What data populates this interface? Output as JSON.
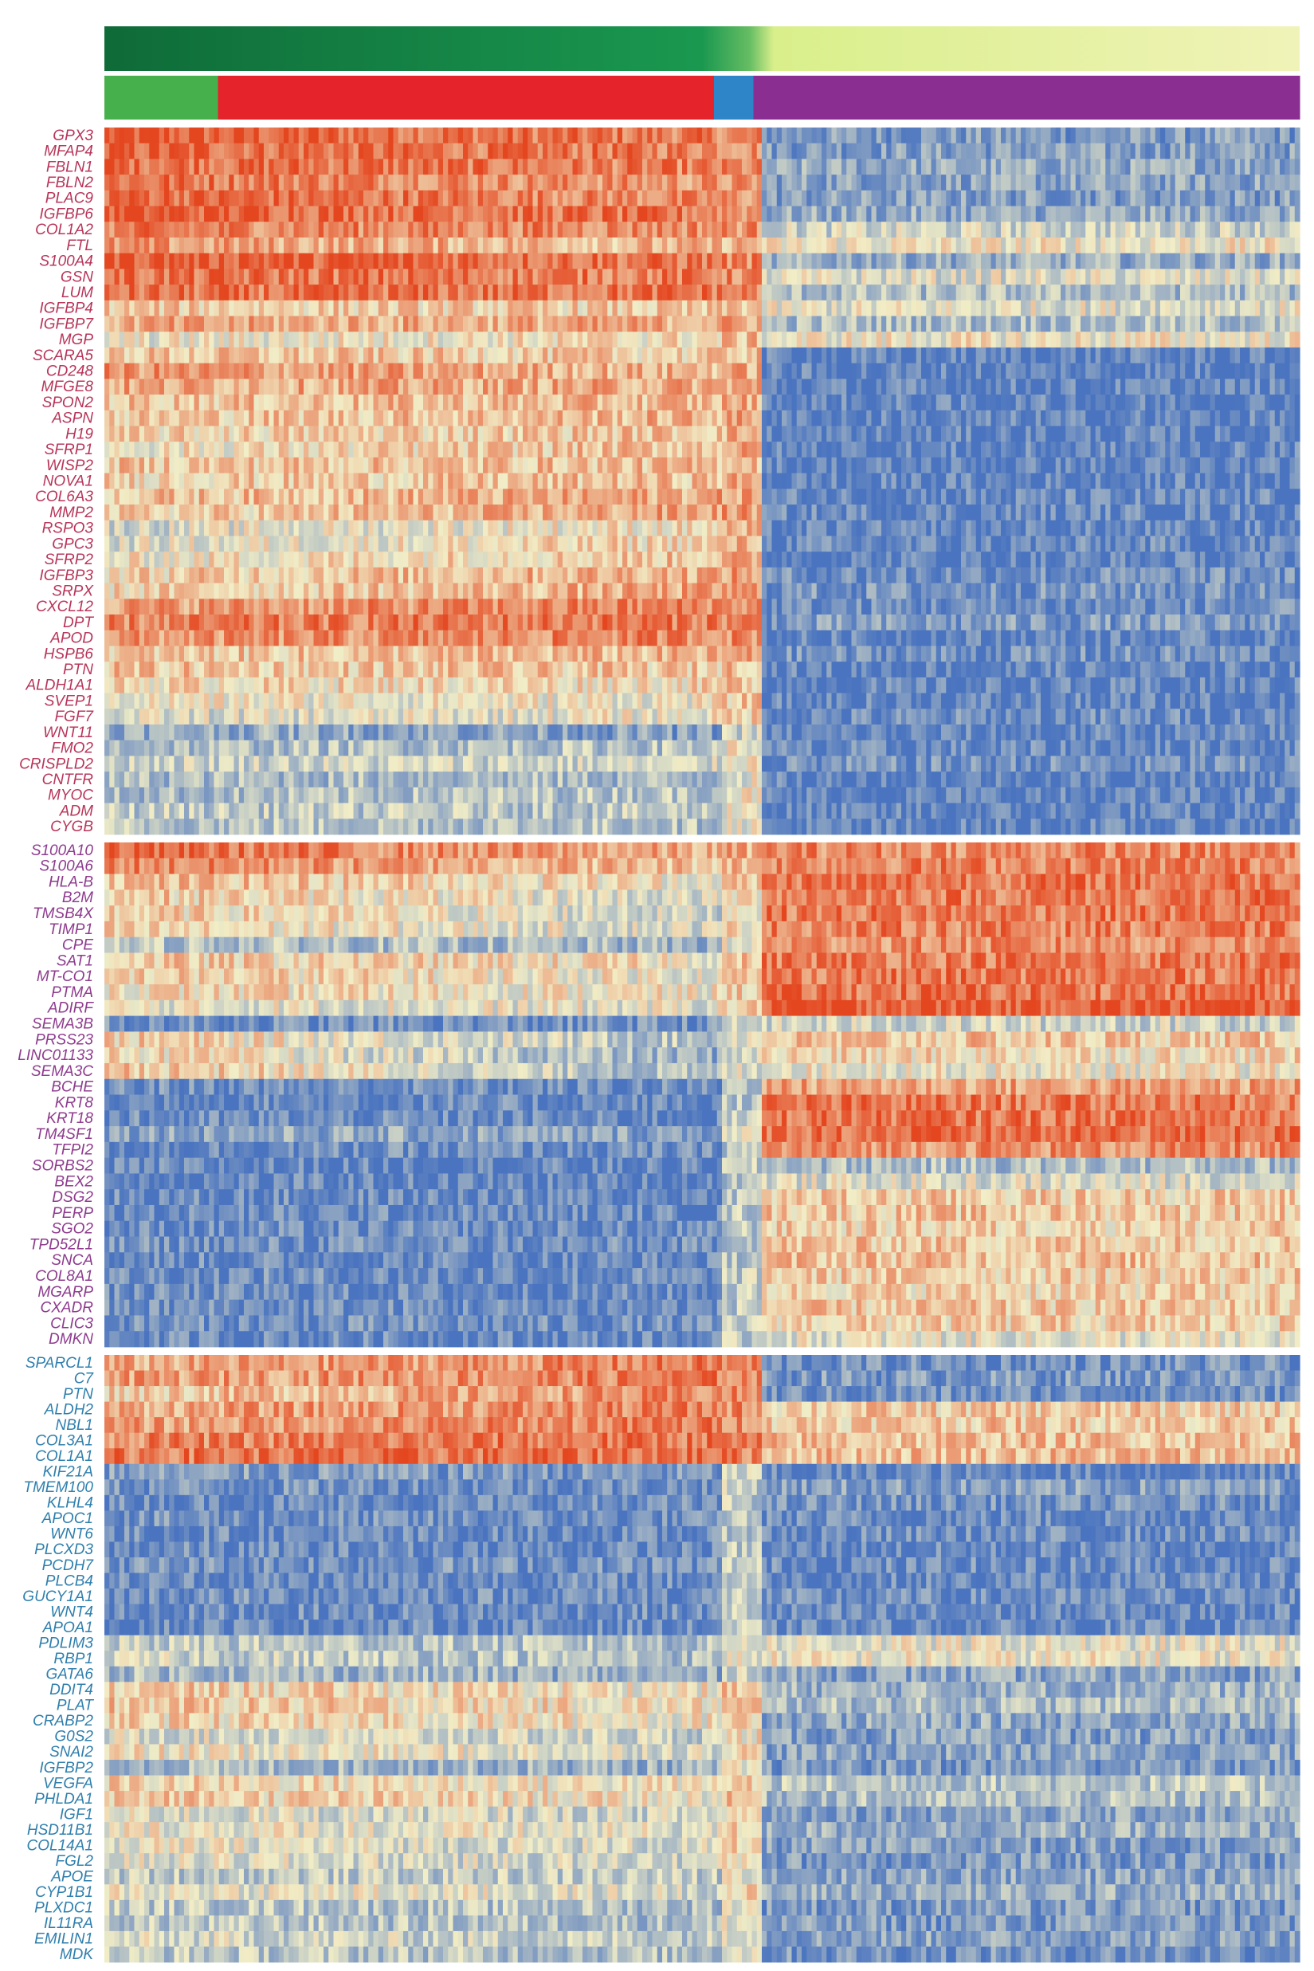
{
  "chart_data": {
    "type": "heatmap",
    "title": "",
    "xlabel": "",
    "ylabel": "",
    "color_scale": {
      "low": "#4a74c0",
      "mid": "#f1edc6",
      "high": "#e4461f"
    },
    "pseudotime_track": {
      "colors": [
        "#0f6b38",
        "#1a9850",
        "#66bd63",
        "#d9ef8b",
        "#f0f3b8"
      ],
      "stops": [
        0,
        0.5,
        0.54,
        0.56,
        1
      ]
    },
    "cluster_track": [
      {
        "color": "#46b14c",
        "from": 0.0,
        "to": 0.095
      },
      {
        "color": "#e5232b",
        "from": 0.095,
        "to": 0.51
      },
      {
        "color": "#2e86c8",
        "from": 0.51,
        "to": 0.543
      },
      {
        "color": "#8a2f91",
        "from": 0.543,
        "to": 1.0
      }
    ],
    "panels": [
      {
        "label_color": "#b8355a",
        "genes": [
          "GPX3",
          "MFAP4",
          "FBLN1",
          "FBLN2",
          "PLAC9",
          "IGFBP6",
          "COL1A2",
          "FTL",
          "S100A4",
          "GSN",
          "LUM",
          "IGFBP4",
          "IGFBP7",
          "MGP",
          "SCARA5",
          "CD248",
          "MFGE8",
          "SPON2",
          "ASPN",
          "H19",
          "SFRP1",
          "WISP2",
          "NOVA1",
          "COL6A3",
          "MMP2",
          "RSPO3",
          "GPC3",
          "SFRP2",
          "IGFBP3",
          "SRPX",
          "CXCL12",
          "DPT",
          "APOD",
          "HSPB6",
          "PTN",
          "ALDH1A1",
          "SVEP1",
          "FGF7",
          "WNT11",
          "FMO2",
          "CRISPLD2",
          "CNTFR",
          "MYOC",
          "ADM",
          "CYGB"
        ],
        "profile_left": [
          0.93,
          0.9,
          0.9,
          0.88,
          0.92,
          0.95,
          0.82,
          0.74,
          0.97,
          0.86,
          0.84,
          0.6,
          0.7,
          0.48,
          0.62,
          0.76,
          0.7,
          0.62,
          0.6,
          0.56,
          0.5,
          0.62,
          0.58,
          0.62,
          0.56,
          0.42,
          0.44,
          0.5,
          0.58,
          0.56,
          0.74,
          0.8,
          0.74,
          0.6,
          0.62,
          0.56,
          0.5,
          0.42,
          0.26,
          0.3,
          0.4,
          0.3,
          0.28,
          0.36,
          0.34
        ],
        "profile_mid": [
          0.82,
          0.82,
          0.8,
          0.74,
          0.76,
          0.82,
          0.8,
          0.64,
          0.84,
          0.82,
          0.86,
          0.58,
          0.7,
          0.56,
          0.58,
          0.66,
          0.7,
          0.66,
          0.68,
          0.64,
          0.66,
          0.64,
          0.64,
          0.72,
          0.74,
          0.56,
          0.6,
          0.64,
          0.72,
          0.72,
          0.82,
          0.86,
          0.82,
          0.66,
          0.6,
          0.56,
          0.5,
          0.5,
          0.16,
          0.34,
          0.4,
          0.28,
          0.36,
          0.34,
          0.32
        ],
        "profile_right": [
          0.16,
          0.18,
          0.22,
          0.2,
          0.18,
          0.22,
          0.4,
          0.5,
          0.24,
          0.44,
          0.3,
          0.46,
          0.3,
          0.5,
          0.05,
          0.06,
          0.06,
          0.06,
          0.06,
          0.05,
          0.06,
          0.05,
          0.06,
          0.08,
          0.08,
          0.06,
          0.08,
          0.06,
          0.12,
          0.14,
          0.1,
          0.16,
          0.06,
          0.12,
          0.06,
          0.06,
          0.06,
          0.1,
          0.06,
          0.08,
          0.12,
          0.06,
          0.06,
          0.06,
          0.06
        ]
      },
      {
        "label_color": "#8e3b8e",
        "genes": [
          "S100A10",
          "S100A6",
          "HLA-B",
          "B2M",
          "TMSB4X",
          "TIMP1",
          "CPE",
          "SAT1",
          "MT-CO1",
          "PTMA",
          "ADIRF",
          "SEMA3B",
          "PRSS23",
          "LINC01133",
          "SEMA3C",
          "BCHE",
          "KRT8",
          "KRT18",
          "TM4SF1",
          "TFPI2",
          "SORBS2",
          "BEX2",
          "DSG2",
          "PERP",
          "SGO2",
          "TPD52L1",
          "SNCA",
          "COL8A1",
          "MGARP",
          "CXADR",
          "CLIC3",
          "DMKN"
        ],
        "profile_left": [
          0.9,
          0.82,
          0.66,
          0.62,
          0.6,
          0.56,
          0.34,
          0.6,
          0.6,
          0.56,
          0.48,
          0.12,
          0.6,
          0.58,
          0.66,
          0.12,
          0.1,
          0.1,
          0.22,
          0.1,
          0.08,
          0.08,
          0.1,
          0.1,
          0.1,
          0.12,
          0.1,
          0.12,
          0.1,
          0.12,
          0.12,
          0.1
        ],
        "profile_mid": [
          0.66,
          0.62,
          0.5,
          0.4,
          0.38,
          0.42,
          0.24,
          0.52,
          0.48,
          0.5,
          0.46,
          0.12,
          0.3,
          0.2,
          0.24,
          0.1,
          0.08,
          0.08,
          0.2,
          0.1,
          0.06,
          0.06,
          0.08,
          0.08,
          0.08,
          0.1,
          0.08,
          0.1,
          0.08,
          0.1,
          0.1,
          0.08
        ],
        "profile_right": [
          0.8,
          0.82,
          0.86,
          0.84,
          0.84,
          0.82,
          0.78,
          0.84,
          0.84,
          0.86,
          0.94,
          0.4,
          0.62,
          0.56,
          0.5,
          0.72,
          0.84,
          0.86,
          0.88,
          0.78,
          0.3,
          0.44,
          0.6,
          0.62,
          0.58,
          0.62,
          0.64,
          0.6,
          0.58,
          0.6,
          0.58,
          0.46
        ]
      },
      {
        "label_color": "#2f7fad",
        "genes": [
          "SPARCL1",
          "C7",
          "PTN",
          "ALDH2",
          "NBL1",
          "COL3A1",
          "COL1A1",
          "KIF21A",
          "TMEM100",
          "KLHL4",
          "APOC1",
          "WNT6",
          "PLCXD3",
          "PCDH7",
          "PLCB4",
          "GUCY1A1",
          "WNT4",
          "APOA1",
          "PDLIM3",
          "RBP1",
          "GATA6",
          "DDIT4",
          "PLAT",
          "CRABP2",
          "G0S2",
          "SNAI2",
          "IGFBP2",
          "VEGFA",
          "PHLDA1",
          "IGF1",
          "HSD11B1",
          "COL14A1",
          "FGL2",
          "APOE",
          "CYP1B1",
          "PLXDC1",
          "IL11RA",
          "EMILIN1",
          "MDK"
        ],
        "profile_left": [
          0.68,
          0.72,
          0.6,
          0.7,
          0.72,
          0.8,
          0.84,
          0.18,
          0.14,
          0.1,
          0.12,
          0.1,
          0.1,
          0.14,
          0.1,
          0.12,
          0.1,
          0.1,
          0.36,
          0.4,
          0.3,
          0.6,
          0.62,
          0.58,
          0.44,
          0.52,
          0.3,
          0.58,
          0.62,
          0.44,
          0.5,
          0.48,
          0.44,
          0.36,
          0.5,
          0.36,
          0.34,
          0.42,
          0.36
        ],
        "profile_mid": [
          0.84,
          0.84,
          0.8,
          0.82,
          0.84,
          0.86,
          0.88,
          0.14,
          0.12,
          0.1,
          0.1,
          0.08,
          0.08,
          0.14,
          0.1,
          0.12,
          0.1,
          0.08,
          0.3,
          0.3,
          0.22,
          0.5,
          0.52,
          0.5,
          0.38,
          0.44,
          0.24,
          0.5,
          0.5,
          0.4,
          0.44,
          0.4,
          0.4,
          0.36,
          0.42,
          0.3,
          0.3,
          0.36,
          0.3
        ],
        "profile_right": [
          0.12,
          0.16,
          0.12,
          0.6,
          0.62,
          0.64,
          0.66,
          0.06,
          0.18,
          0.12,
          0.1,
          0.1,
          0.08,
          0.1,
          0.08,
          0.1,
          0.08,
          0.08,
          0.46,
          0.48,
          0.2,
          0.26,
          0.3,
          0.22,
          0.18,
          0.2,
          0.16,
          0.34,
          0.3,
          0.2,
          0.24,
          0.18,
          0.16,
          0.2,
          0.24,
          0.16,
          0.16,
          0.2,
          0.14
        ]
      }
    ]
  }
}
